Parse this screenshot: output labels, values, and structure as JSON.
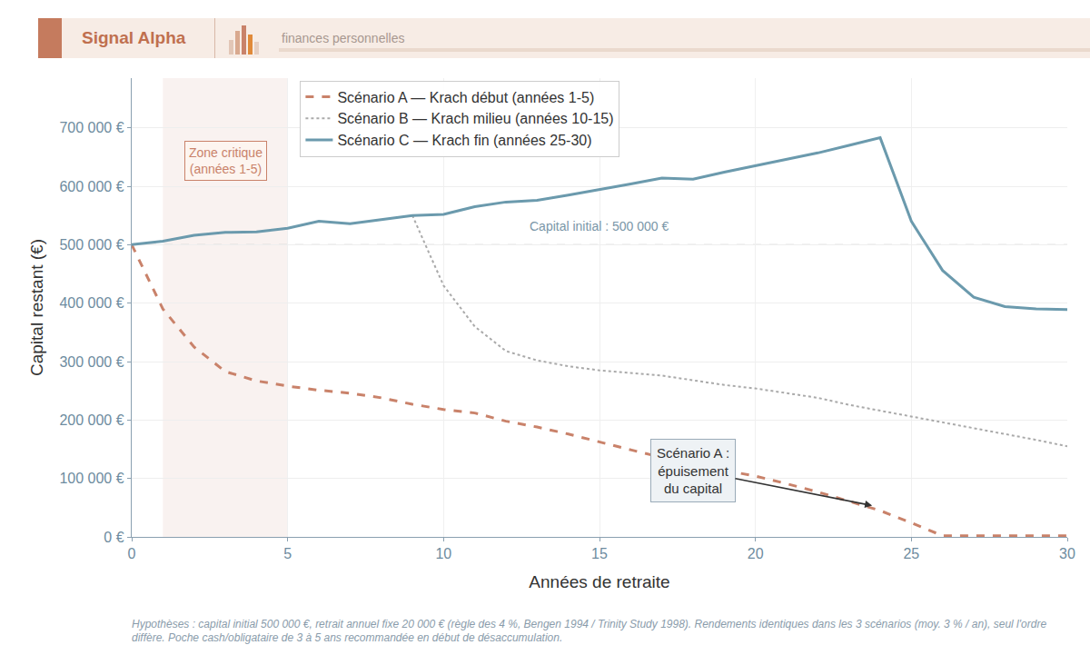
{
  "header": {
    "brand": "Signal Alpha",
    "section": "finances personnelles"
  },
  "chart_data": {
    "type": "line",
    "x_title": "Années de retraite",
    "y_title": "Capital restant (€)",
    "x": [
      0,
      1,
      2,
      3,
      4,
      5,
      6,
      7,
      8,
      9,
      10,
      11,
      12,
      13,
      14,
      15,
      16,
      17,
      18,
      19,
      20,
      21,
      22,
      23,
      24,
      25,
      26,
      27,
      28,
      29,
      30
    ],
    "series": [
      {
        "name": "Scénario A — Krach début (années 1-5)",
        "color": "#c9826a",
        "line_style": "dashed",
        "values": [
          500000,
          390000,
          325000,
          283000,
          267000,
          258000,
          251000,
          246000,
          238000,
          227000,
          218000,
          212000,
          198000,
          188000,
          176000,
          162000,
          149000,
          136000,
          124000,
          114000,
          104000,
          91000,
          77000,
          61000,
          45000,
          24000,
          2000,
          2000,
          2000,
          2000,
          2000
        ]
      },
      {
        "name": "Scénario B — Krach milieu (années 10-15)",
        "color": "#aaaaaa",
        "line_style": "dotted",
        "values": [
          null,
          null,
          null,
          null,
          null,
          null,
          null,
          null,
          null,
          550000,
          430000,
          360000,
          318000,
          302000,
          292000,
          285000,
          281000,
          276000,
          268000,
          260000,
          254000,
          246000,
          238000,
          226000,
          216000,
          207000,
          197000,
          187000,
          176000,
          166000,
          155000
        ]
      },
      {
        "name": "Scénario C — Krach fin (années 25-30)",
        "color": "#6b9aad",
        "line_style": "solid",
        "values": [
          500000,
          506000,
          516000,
          521000,
          522000,
          528000,
          540000,
          536000,
          543000,
          550000,
          552000,
          565000,
          573000,
          576000,
          585000,
          594000,
          604000,
          614000,
          612000,
          624000,
          635000,
          646000,
          657000,
          670000,
          683000,
          540000,
          456000,
          410000,
          394000,
          390000,
          389000
        ]
      }
    ],
    "xlim": [
      0,
      30
    ],
    "xticks": [
      0,
      5,
      10,
      15,
      20,
      25,
      30
    ],
    "ylim": [
      0,
      785000
    ],
    "yticks": [
      {
        "value": 0,
        "label": "0 €"
      },
      {
        "value": 100000,
        "label": "100 000 €"
      },
      {
        "value": 200000,
        "label": "200 000 €"
      },
      {
        "value": 300000,
        "label": "300 000 €"
      },
      {
        "value": 400000,
        "label": "400 000 €"
      },
      {
        "value": 500000,
        "label": "500 000 €"
      },
      {
        "value": 600000,
        "label": "600 000 €"
      },
      {
        "value": 700000,
        "label": "700 000 €"
      }
    ],
    "grid": true,
    "legend": "top left",
    "zone": {
      "x0": 1,
      "x1": 5,
      "lines": [
        "Zone critique",
        "(années 1-5)"
      ],
      "label_x": 3,
      "label_y": 643000
    },
    "reference": {
      "value": 500000,
      "label": "Capital initial : 500 000 €",
      "label_x": 15,
      "label_y": 531000
    },
    "annotation": {
      "lines": [
        "Scénario A :",
        "épuisement",
        "du capital"
      ],
      "text_x": 18,
      "text_y": 114000,
      "x": 23.8,
      "y": 53000
    }
  },
  "footnote": "Hypothèses : capital initial 500 000 €, retrait annuel fixe 20 000 € (règle des 4 %, Bengen 1994 / Trinity Study 1998). Rendements identiques dans les 3 scénarios (moy. 3 % / an), seul l'ordre diffère. Poche cash/obligataire de 3 à 5 ans recommandée en début de désaccumulation."
}
